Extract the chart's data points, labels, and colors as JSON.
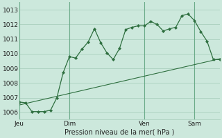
{
  "bg_color": "#cce8dc",
  "grid_color": "#aacfbe",
  "line_color": "#2d6e3e",
  "vline_color": "#6aaa88",
  "day_labels": [
    "Jeu",
    "Dim",
    "Ven",
    "Sam"
  ],
  "day_positions": [
    0,
    8,
    20,
    28
  ],
  "xlabel": "Pression niveau de la mer( hPa )",
  "ylim": [
    1005.5,
    1013.5
  ],
  "yticks": [
    1006,
    1007,
    1008,
    1009,
    1010,
    1011,
    1012,
    1013
  ],
  "line1_x": [
    0,
    1,
    2,
    3,
    4,
    5,
    6,
    7,
    8,
    9,
    10,
    11,
    12,
    13,
    14,
    15,
    16,
    17,
    18,
    19,
    20,
    21,
    22,
    23,
    24,
    25,
    26,
    27,
    28,
    29,
    30,
    31,
    32
  ],
  "line1_y": [
    1006.7,
    1006.65,
    1006.05,
    1006.05,
    1006.05,
    1006.15,
    1007.0,
    1008.7,
    1009.8,
    1009.7,
    1010.3,
    1010.8,
    1011.7,
    1010.75,
    1010.05,
    1009.6,
    1010.35,
    1011.65,
    1011.8,
    1011.9,
    1011.9,
    1012.2,
    1012.0,
    1011.55,
    1011.7,
    1011.8,
    1012.6,
    1012.7,
    1012.25,
    1011.5,
    1010.85,
    1009.6,
    1009.6
  ],
  "line2_x": [
    0,
    32
  ],
  "line2_y": [
    1006.5,
    1009.65
  ],
  "xlim": [
    0,
    32
  ],
  "figw": 3.2,
  "figh": 2.0,
  "dpi": 100
}
